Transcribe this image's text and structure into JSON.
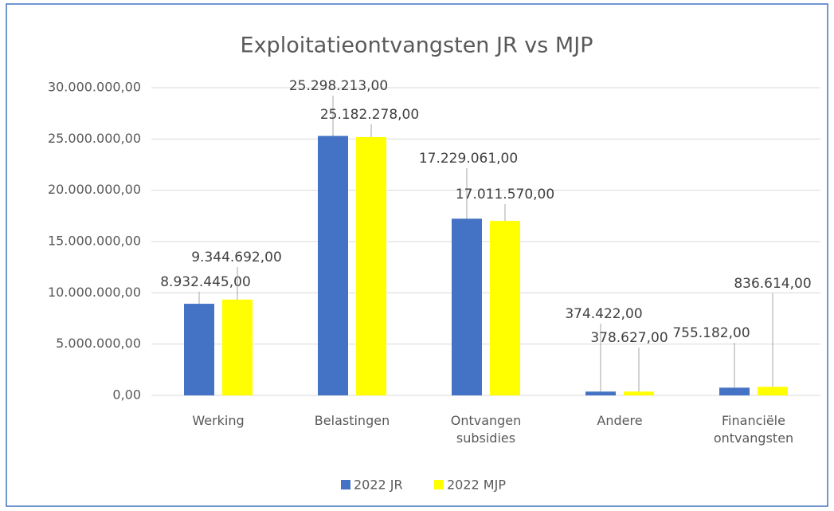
{
  "chart_data": {
    "type": "bar",
    "title": "Exploitatieontvangsten JR vs MJP",
    "categories": [
      "Werking",
      "Belastingen",
      "Ontvangen subsidies",
      "Andere",
      "Financiële ontvangsten"
    ],
    "series": [
      {
        "name": "2022 JR",
        "color": "#4472c4",
        "values": [
          8932445,
          25298213,
          17229061,
          374422,
          755182
        ],
        "value_labels": [
          "8.932.445,00",
          "25.298.213,00",
          "17.229.061,00",
          "374.422,00",
          "755.182,00"
        ]
      },
      {
        "name": "2022 MJP",
        "color": "#ffff00",
        "values": [
          9344692,
          25182278,
          17011570,
          378627,
          836614
        ],
        "value_labels": [
          "9.344.692,00",
          "25.182.278,00",
          "17.011.570,00",
          "378.627,00",
          "836.614,00"
        ]
      }
    ],
    "ylim": [
      0,
      30000000
    ],
    "yticks": [
      {
        "value": 0,
        "label": "0,00"
      },
      {
        "value": 5000000,
        "label": "5.000.000,00"
      },
      {
        "value": 10000000,
        "label": "10.000.000,00"
      },
      {
        "value": 15000000,
        "label": "15.000.000,00"
      },
      {
        "value": 20000000,
        "label": "20.000.000,00"
      },
      {
        "value": 25000000,
        "label": "25.000.000,00"
      },
      {
        "value": 30000000,
        "label": "30.000.000,00"
      }
    ],
    "grid": true,
    "legend": "bottom"
  }
}
